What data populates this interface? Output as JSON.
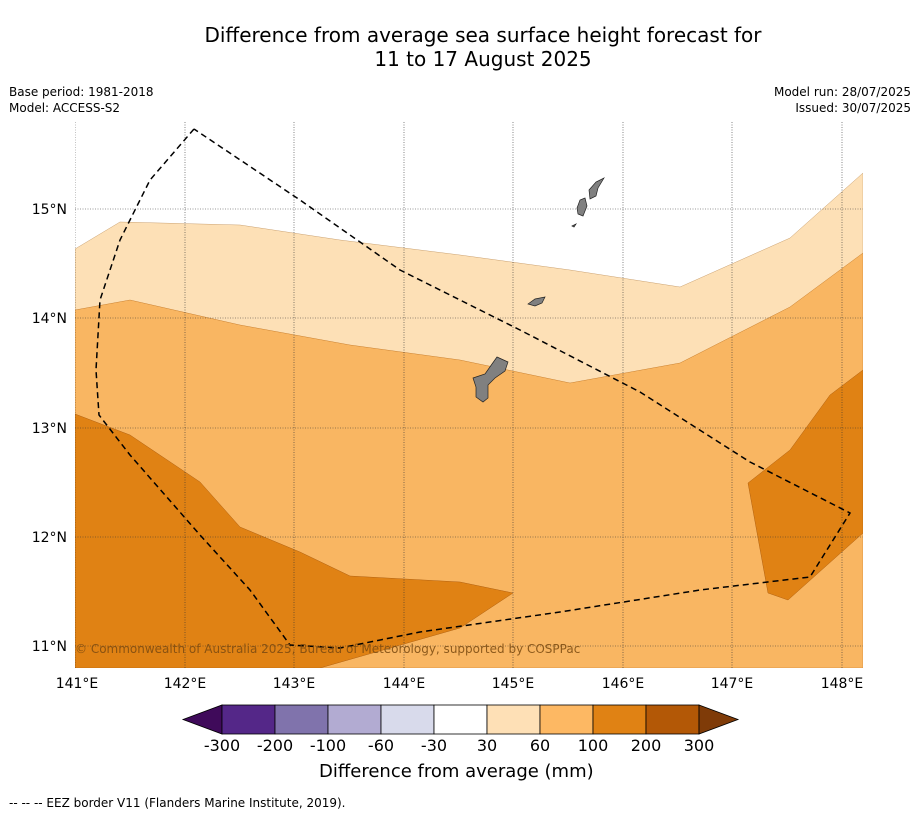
{
  "title": {
    "line1": "Difference from average sea surface height forecast for",
    "line2": "11 to 17 August 2025"
  },
  "meta": {
    "base_period": "Base period: 1981-2018",
    "model": "Model: ACCESS-S2",
    "model_run": "Model run: 28/07/2025",
    "issued": "Issued: 30/07/2025"
  },
  "map": {
    "lat_ticks": [
      "15°N",
      "14°N",
      "13°N",
      "12°N",
      "11°N"
    ],
    "lon_ticks": [
      "141°E",
      "142°E",
      "143°E",
      "144°E",
      "145°E",
      "146°E",
      "147°E",
      "148°E"
    ],
    "copyright": "© Commonwealth of Australia 2025, Bureau of Meteorology, supported by COSPPac",
    "band_colors": {
      "30-60": "#fde0b6",
      "60-100": "#f9b662",
      "100-200": "#e08214",
      "land": "#808080",
      "eez": "#000000"
    }
  },
  "colorbar": {
    "title": "Difference from average (mm)",
    "tick_labels": [
      "-300",
      "-200",
      "-100",
      "-60",
      "-30",
      "30",
      "60",
      "100",
      "200",
      "300"
    ],
    "colors": [
      "#3f0a5a",
      "#542788",
      "#8073ac",
      "#b2abd2",
      "#d8daeb",
      "#ffffff",
      "#fee0b6",
      "#fdb863",
      "#e08214",
      "#b35806",
      "#7f3b08"
    ]
  },
  "footer": {
    "legend": "-- -- -- EEZ border V11 (Flanders Marine Institute, 2019)."
  }
}
